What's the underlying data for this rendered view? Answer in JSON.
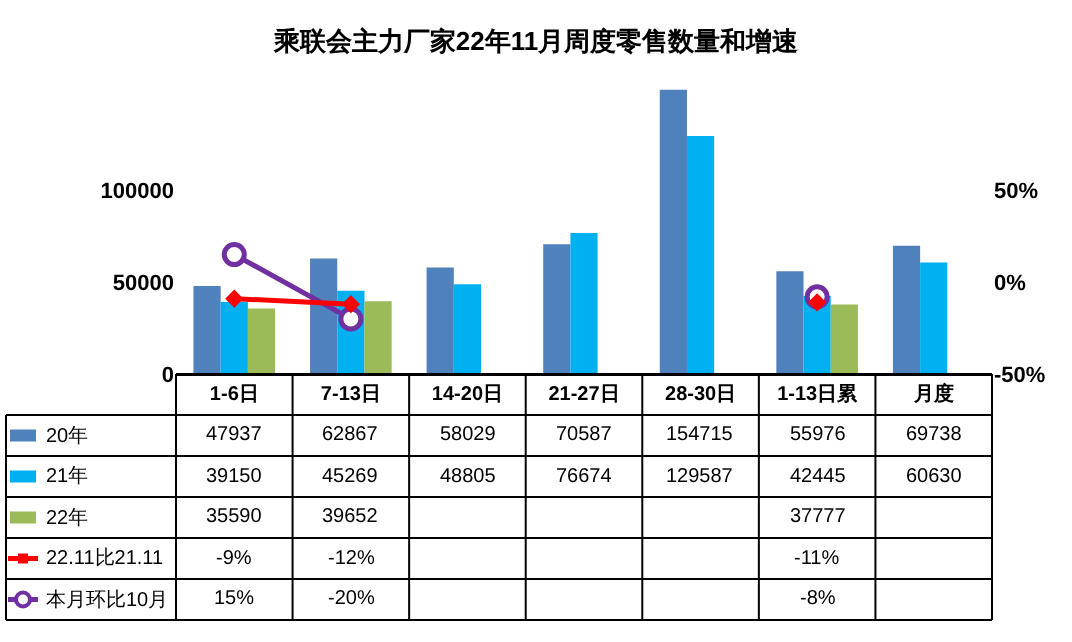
{
  "chart_data": {
    "type": "bar",
    "title": "乘联会主力厂家22年11月周度零售数量和增速",
    "categories": [
      "1-6日",
      "7-13日",
      "14-20日",
      "21-27日",
      "28-30日",
      "1-13日累",
      "月度"
    ],
    "series": [
      {
        "name": "20年",
        "color": "#4f81bd",
        "values": [
          47937,
          62867,
          58029,
          70587,
          154715,
          55976,
          69738
        ],
        "value_labels": [
          "47937",
          "62867",
          "58029",
          "70587",
          "154715",
          "55976",
          "69738"
        ]
      },
      {
        "name": "21年",
        "color": "#00b0f0",
        "values": [
          39150,
          45269,
          48805,
          76674,
          129587,
          42445,
          60630
        ],
        "value_labels": [
          "39150",
          "45269",
          "48805",
          "76674",
          "129587",
          "42445",
          "60630"
        ]
      },
      {
        "name": "22年",
        "color": "#9bbb59",
        "values": [
          35590,
          39652,
          null,
          null,
          null,
          37777,
          null
        ],
        "value_labels": [
          "35590",
          "39652",
          null,
          null,
          null,
          "37777",
          null
        ]
      },
      {
        "name": "22.11比21.11",
        "type": "line",
        "axis": "y2",
        "marker": "diamond",
        "color": "#ff0000",
        "values": [
          -9,
          -12,
          null,
          null,
          null,
          -11,
          null
        ],
        "value_labels": [
          "-9%",
          "-12%",
          null,
          null,
          null,
          "-11%",
          null
        ]
      },
      {
        "name": "本月环比10月",
        "type": "line",
        "axis": "y2",
        "marker": "circle",
        "color": "#7030a0",
        "values": [
          15,
          -20,
          null,
          null,
          null,
          -8,
          null
        ],
        "value_labels": [
          "15%",
          "-20%",
          null,
          null,
          null,
          "-8%",
          null
        ]
      }
    ],
    "ylim": [
      0,
      160000
    ],
    "yticks": [
      0,
      50000,
      100000
    ],
    "y2lim": [
      -50,
      110
    ],
    "y2ticks": [
      {
        "value": -50,
        "label": "-50%"
      },
      {
        "value": 0,
        "label": "0%"
      },
      {
        "value": 50,
        "label": "50%"
      }
    ],
    "legend": "bottom left"
  }
}
